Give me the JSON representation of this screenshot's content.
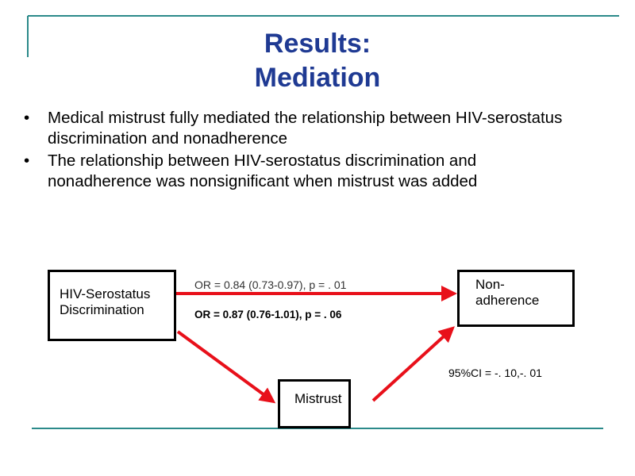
{
  "header": {
    "title": [
      "Results:",
      "Mediation"
    ]
  },
  "bullets": [
    "Medical mistrust fully mediated the relationship between HIV-serostatus discrimination and nonadherence",
    "The relationship between HIV-serostatus discrimination and nonadherence was nonsignificant when mistrust was added"
  ],
  "nodes": [
    {
      "label": [
        "HIV-Serostatus",
        "Discrimination"
      ]
    },
    {
      "label": [
        "Non-",
        "adherence"
      ]
    },
    {
      "label": [
        "Mistrust"
      ]
    }
  ],
  "edges": [
    {
      "label": "OR = 0.84 (0.73-0.97), p = . 01"
    },
    {
      "label": "OR = 0.87 (0.76-1.01), p = . 06"
    },
    {
      "label": "95%CI = -. 10,-. 01"
    }
  ]
}
